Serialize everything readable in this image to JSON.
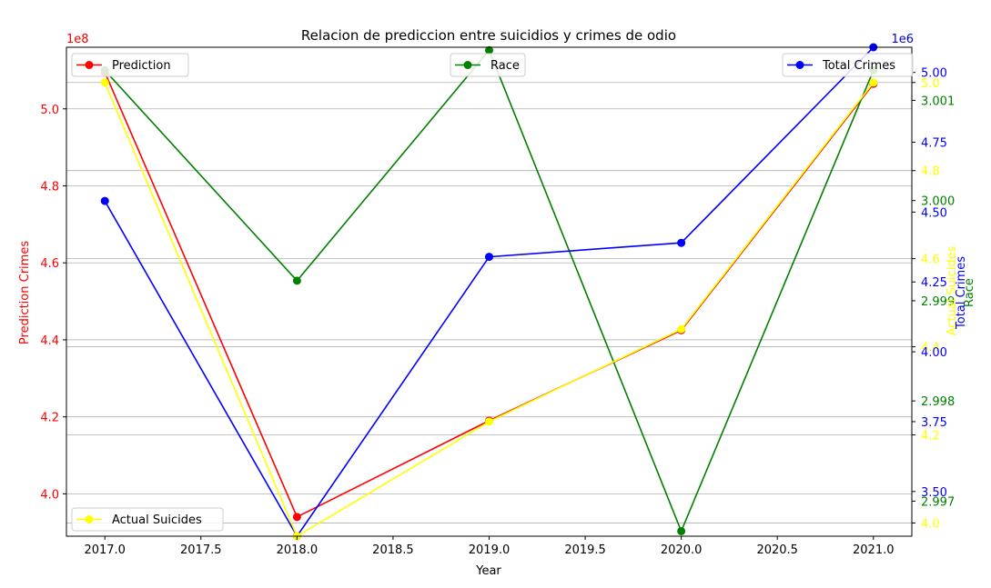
{
  "chart_data": {
    "type": "line",
    "title": "Relacion de prediccion entre suicidios y crimes de odio",
    "xlabel": "Year",
    "x": [
      2017,
      2018,
      2019,
      2020,
      2021
    ],
    "xlim": [
      2016.8,
      2021.2
    ],
    "xticks": [
      "2017.0",
      "2017.5",
      "2018.0",
      "2018.5",
      "2019.0",
      "2019.5",
      "2020.0",
      "2020.5",
      "2021.0"
    ],
    "grid": "horizontal",
    "axes": [
      {
        "id": "prediction",
        "label": "Prediction Crimes",
        "color": "#ff0000",
        "side": "left",
        "exponent": "1e8",
        "ylim": [
          3.89,
          5.16
        ],
        "ticks": [
          "4.0",
          "4.2",
          "4.4",
          "4.6",
          "4.8",
          "5.0"
        ],
        "ticks_v": [
          4.0,
          4.2,
          4.4,
          4.6,
          4.8,
          5.0
        ]
      },
      {
        "id": "actual",
        "label": "Actual Suicides",
        "color": "#ffff00",
        "side": "right",
        "exponent": "1e6",
        "ylim": [
          3.97,
          5.08
        ],
        "ticks": [
          "4.0",
          "4.2",
          "4.4",
          "4.6",
          "4.8",
          "5.0"
        ],
        "ticks_v": [
          4.0,
          4.2,
          4.4,
          4.6,
          4.8,
          5.0
        ]
      },
      {
        "id": "race",
        "label": "Race",
        "color": "#008000",
        "side": "right",
        "ylim": [
          2.99665,
          3.00153
        ],
        "ticks": [
          "2.997",
          "2.998",
          "2.999",
          "3.000",
          "3.001"
        ],
        "ticks_v": [
          2.997,
          2.998,
          2.999,
          3.0,
          3.001
        ]
      },
      {
        "id": "total",
        "label": "Total Crimes",
        "color": "#0000ff",
        "side": "right",
        "exponent": "1e6",
        "ylim": [
          3.34,
          5.09
        ],
        "ticks": [
          "3.50",
          "3.75",
          "4.00",
          "4.25",
          "4.50",
          "4.75",
          "5.00"
        ],
        "ticks_v": [
          3.5,
          3.75,
          4.0,
          4.25,
          4.5,
          4.75,
          5.0
        ]
      }
    ],
    "series": [
      {
        "name": "Prediction",
        "axis": "prediction",
        "color": "#ff0000",
        "values": [
          5.095,
          3.94,
          4.19,
          4.425,
          5.065
        ],
        "legend": "top-left"
      },
      {
        "name": "Race",
        "axis": "race",
        "color": "#008000",
        "values": [
          3.0013,
          2.9992,
          3.0015,
          2.9967,
          3.0013
        ],
        "legend": "top-center"
      },
      {
        "name": "Total Crimes",
        "axis": "total",
        "color": "#0000ff",
        "values": [
          4.54,
          3.34,
          4.34,
          4.39,
          5.09
        ],
        "legend": "top-right"
      },
      {
        "name": "Actual Suicides",
        "axis": "actual",
        "color": "#ffff00",
        "values": [
          5.0,
          3.97,
          4.23,
          4.44,
          5.0
        ],
        "legend": "bottom-left"
      }
    ]
  }
}
